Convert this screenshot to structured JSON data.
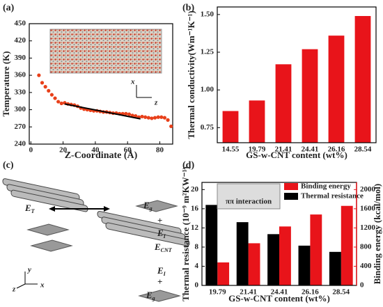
{
  "chart_data": [
    {
      "type": "scatter",
      "panel_label": "(a)",
      "x_label": "Z-Coordinate (Å)",
      "y_label": "Temperature (K)",
      "x": [
        5,
        7,
        9,
        11,
        13,
        15,
        17,
        19,
        21,
        23,
        25,
        27,
        29,
        31,
        33,
        35,
        37,
        39,
        41,
        43,
        45,
        47,
        49,
        51,
        53,
        55,
        57,
        59,
        61,
        63,
        65,
        67,
        69,
        71,
        73,
        75,
        77,
        79,
        81,
        83,
        85,
        87
      ],
      "y": [
        360,
        347,
        340,
        333,
        326,
        320,
        314,
        311,
        312,
        310,
        309,
        308,
        306,
        303,
        301,
        300,
        299,
        298,
        298,
        297,
        296,
        296,
        295,
        294,
        294,
        293,
        293,
        293,
        292,
        290,
        289,
        287,
        288,
        287,
        286,
        285,
        286,
        287,
        287,
        286,
        282,
        271
      ],
      "color": "#e8401a",
      "fit": {
        "x": [
          21,
          68
        ],
        "y": [
          310,
          284
        ],
        "color": "#000000"
      },
      "xlim": [
        -1,
        88
      ],
      "xticks": [
        0,
        20,
        40,
        60,
        80
      ],
      "ylim": [
        240,
        450
      ],
      "yticks": [
        240,
        270,
        300,
        330,
        360,
        390,
        420,
        450
      ],
      "inset_axes": [
        "x",
        "z"
      ]
    },
    {
      "type": "bar",
      "panel_label": "(b)",
      "x_label": "GS-w-CNT content (wt%)",
      "y_label": "Thermal conductivity(Wm⁻¹K⁻¹)",
      "categories": [
        "14.55",
        "19.79",
        "21.41",
        "24.41",
        "26.16",
        "28.54"
      ],
      "values": [
        0.86,
        0.93,
        1.17,
        1.27,
        1.36,
        1.49
      ],
      "color": "#e8141a",
      "ylim": [
        0.65,
        1.55
      ],
      "yticks": [
        {
          "value": 0.75,
          "label": "0.75"
        },
        {
          "value": 1,
          "label": "1.00"
        },
        {
          "value": 1.25,
          "label": "1.25"
        },
        {
          "value": 1.5,
          "label": "1.50"
        }
      ]
    },
    {
      "type": "diagram",
      "panel_label": "(c)",
      "labels": [
        {
          "text": "E",
          "sub": "T"
        },
        {
          "text": "E",
          "sub": "g"
        },
        {
          "text": "+"
        },
        {
          "text": "E",
          "sub": "I"
        },
        {
          "text": "E",
          "sub": "CNT"
        },
        {
          "text": "E",
          "sub": "I"
        },
        {
          "text": "+"
        },
        {
          "text": "E",
          "sub": "g"
        }
      ],
      "axes": [
        "y",
        "z",
        "x"
      ]
    },
    {
      "type": "dual_bar",
      "panel_label": "(d)",
      "x_label": "GS-w-CNT content (wt%)",
      "y_label": "Thermal resistance (10⁻⁹ m²KW⁻¹)",
      "y2_label": "Binding energy (kcal/mol)",
      "categories": [
        "19.79",
        "21.41",
        "24.41",
        "26.16",
        "28.54"
      ],
      "series": [
        {
          "name": "Binding energy",
          "color": "#e8141a",
          "axis": "y2",
          "values": [
            480,
            880,
            1230,
            1480,
            1660
          ]
        },
        {
          "name": "Thermal resistance",
          "color": "#000000",
          "values": [
            16.8,
            13.2,
            10.7,
            8.3,
            7.0
          ]
        }
      ],
      "ylim": [
        0,
        21.5
      ],
      "yticks": [
        0,
        4,
        8,
        12,
        16,
        20
      ],
      "y2lim": [
        0,
        2150
      ],
      "y2ticks": [
        0,
        400,
        800,
        1200,
        1600,
        2000
      ],
      "inset_text": "ππ interaction",
      "legend": "top-right"
    }
  ]
}
